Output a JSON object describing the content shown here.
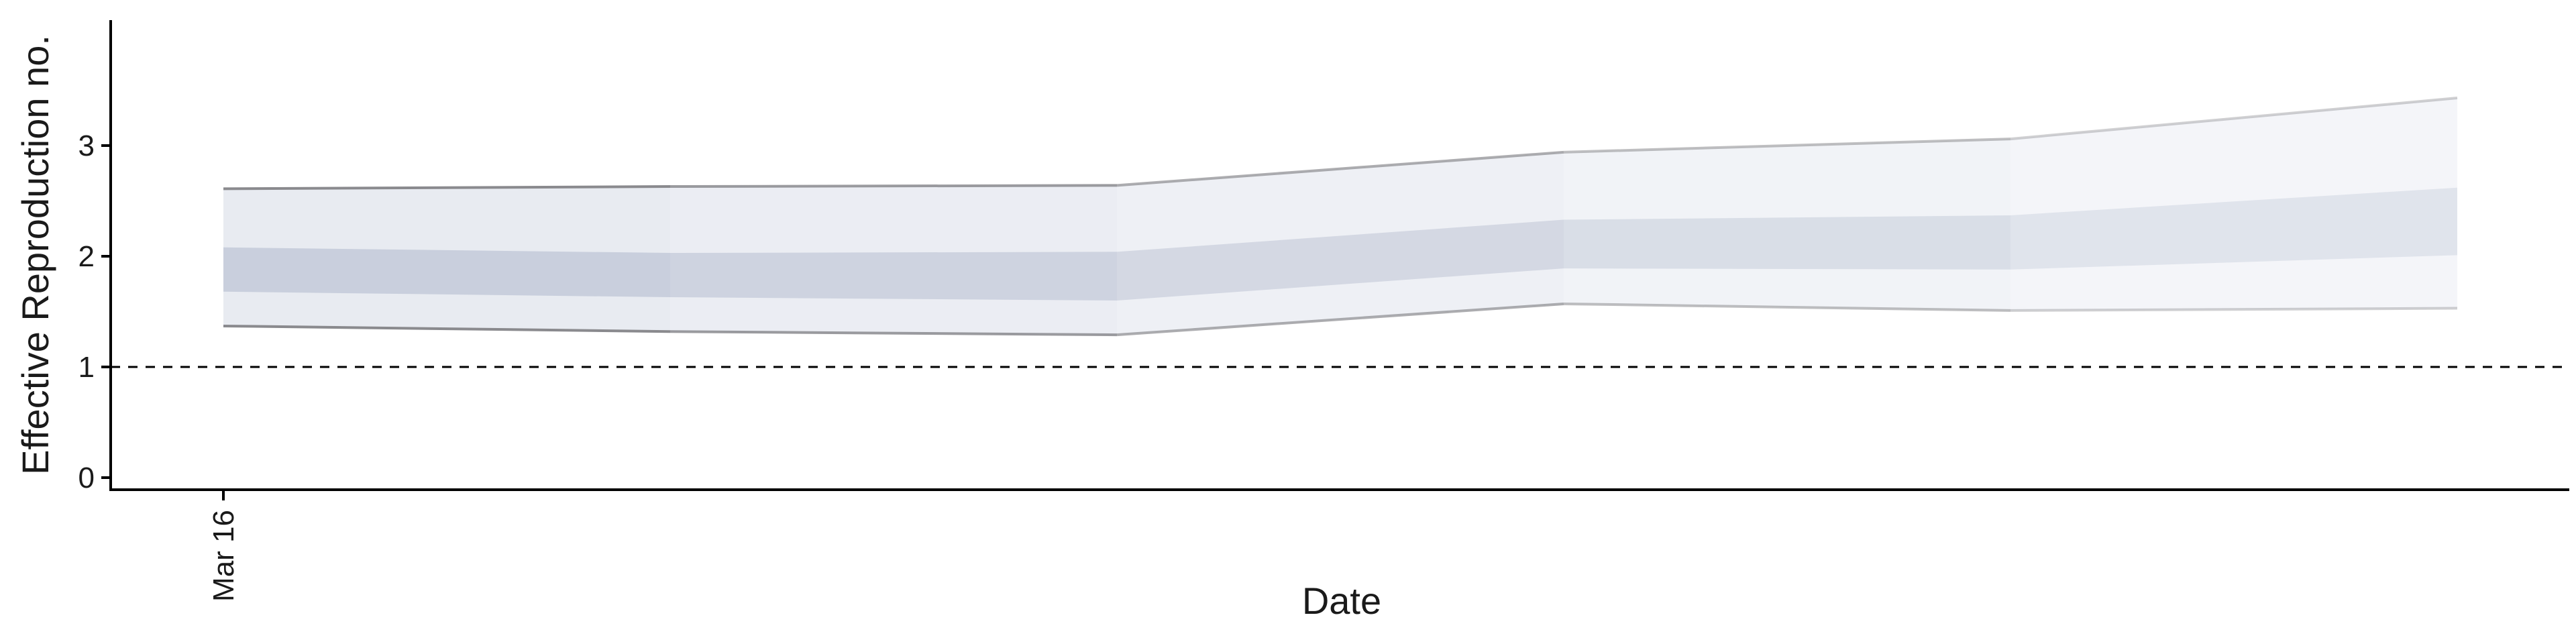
{
  "chart_data": {
    "type": "area",
    "xlabel": "Date",
    "ylabel": "Effective Reproduction no.",
    "x_tick_labels": [
      "Mar 16"
    ],
    "y_ticks": [
      0,
      1,
      2,
      3
    ],
    "ylim": [
      -0.15,
      3.6
    ],
    "reference_line": {
      "y": 1,
      "style": "dashed"
    },
    "grid": false,
    "x_points": [
      0,
      1,
      2,
      3,
      4,
      5
    ],
    "bands": [
      {
        "level": "outer",
        "lower": [
          1.37,
          1.32,
          1.29,
          1.57,
          1.51,
          1.53
        ],
        "upper": [
          2.61,
          2.63,
          2.64,
          2.94,
          3.06,
          3.43
        ]
      },
      {
        "level": "inner",
        "lower": [
          1.68,
          1.63,
          1.6,
          1.89,
          1.88,
          2.01
        ],
        "upper": [
          2.08,
          2.03,
          2.04,
          2.33,
          2.37,
          2.62
        ]
      }
    ],
    "colors": {
      "outer_band": "#e4e7ef",
      "inner_band": "#c3cad9",
      "band_edge": "#8a8a8e",
      "axis": "#000000"
    }
  }
}
